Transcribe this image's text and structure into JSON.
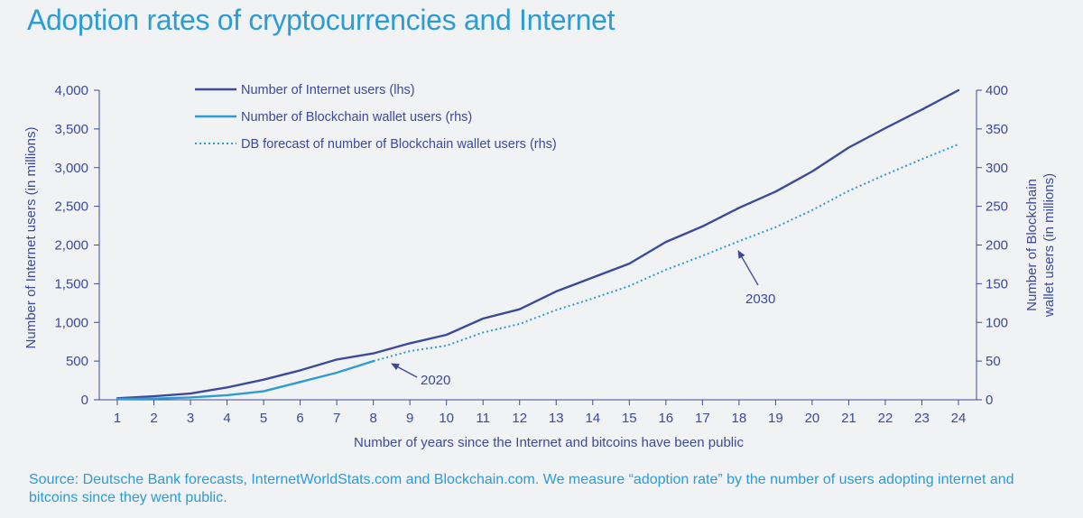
{
  "title": "Adoption rates of cryptocurrencies and Internet",
  "source": "Source: Deutsche Bank forecasts, InternetWorldStats.com and Blockchain.com. We measure “adoption rate” by the number of users adopting internet and bitcoins since they went public.",
  "colors": {
    "title": "#2d9cd4",
    "internet": "#3b4a99",
    "blockchain": "#2d9cd4",
    "forecast": "#2d9cd4",
    "axis": "#3b4a99",
    "background": "#f0f2f4"
  },
  "chart_data": {
    "type": "line",
    "title": "Adoption rates of cryptocurrencies and Internet",
    "xlabel": "Number of years since the Internet and bitcoins have been public",
    "ylabel_left": "Number of Internet users (in millions)",
    "ylabel_right": [
      "Number of Blockchain",
      "wallet users (in millions)"
    ],
    "x": [
      1,
      2,
      3,
      4,
      5,
      6,
      7,
      8,
      9,
      10,
      11,
      12,
      13,
      14,
      15,
      16,
      17,
      18,
      19,
      20,
      21,
      22,
      23,
      24
    ],
    "x_ticks": [
      "1",
      "2",
      "3",
      "4",
      "5",
      "6",
      "7",
      "8",
      "9",
      "10",
      "11",
      "12",
      "13",
      "14",
      "15",
      "16",
      "17",
      "18",
      "19",
      "20",
      "21",
      "22",
      "23",
      "24"
    ],
    "ylim_left": [
      0,
      4000
    ],
    "ylim_right": [
      0,
      400
    ],
    "y_ticks_left": [
      "0",
      "500",
      "1,000",
      "1,500",
      "2,000",
      "2,500",
      "3,000",
      "3,500",
      "4,000"
    ],
    "y_ticks_right": [
      "0",
      "50",
      "100",
      "150",
      "200",
      "250",
      "300",
      "350",
      "400"
    ],
    "grid": false,
    "legend_position": "top-left",
    "series": [
      {
        "name": "Number of Internet users (lhs)",
        "axis": "left",
        "style": "solid",
        "x": [
          1,
          2,
          3,
          4,
          5,
          6,
          7,
          8,
          9,
          10,
          11,
          12,
          13,
          14,
          15,
          16,
          17,
          18,
          19,
          20,
          21,
          22,
          23,
          24
        ],
        "values": [
          20,
          45,
          80,
          160,
          260,
          380,
          520,
          600,
          730,
          840,
          1050,
          1170,
          1400,
          1580,
          1760,
          2040,
          2240,
          2480,
          2690,
          2950,
          3260,
          3510,
          3750,
          4000
        ]
      },
      {
        "name": "Number of Blockchain wallet users (rhs)",
        "axis": "right",
        "style": "solid",
        "x": [
          1,
          2,
          3,
          4,
          5,
          6,
          7,
          8
        ],
        "values": [
          1,
          1.5,
          3,
          6,
          11,
          23,
          35,
          50
        ]
      },
      {
        "name": "DB forecast of number of Blockchain wallet users (rhs)",
        "axis": "right",
        "style": "dotted",
        "x": [
          8,
          9,
          10,
          11,
          12,
          13,
          14,
          15,
          16,
          17,
          18,
          19,
          20,
          21,
          22,
          23,
          24
        ],
        "values": [
          50,
          63,
          70,
          87,
          98,
          116,
          131,
          147,
          168,
          186,
          205,
          223,
          245,
          270,
          291,
          311,
          330
        ]
      }
    ],
    "annotations": [
      {
        "text": "2020",
        "x": 8.5,
        "y_right": 45
      },
      {
        "text": "2030",
        "x": 18,
        "y_right": 193
      }
    ]
  }
}
